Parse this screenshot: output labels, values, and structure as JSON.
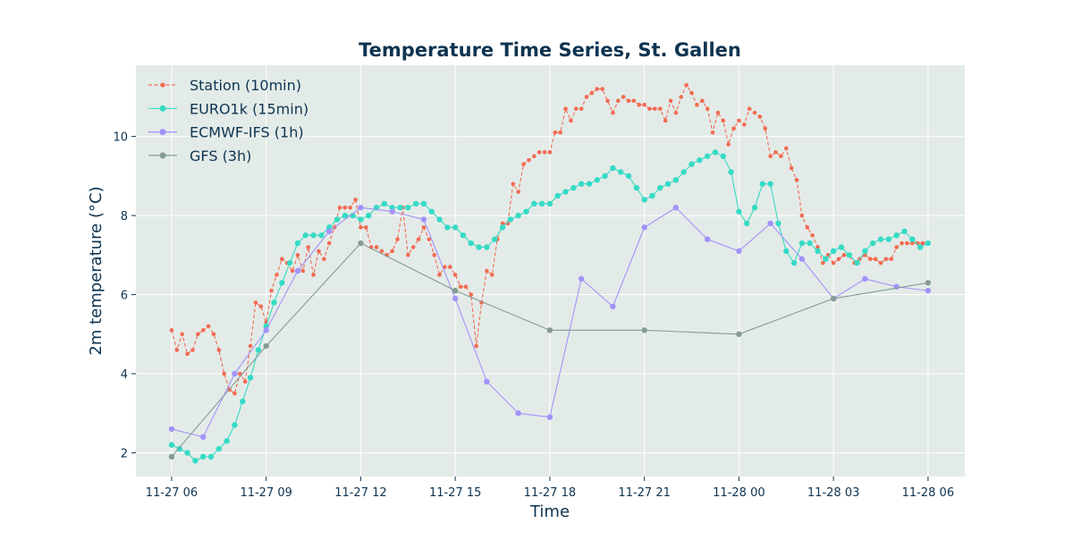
{
  "chart_data": {
    "type": "line",
    "title": "Temperature Time Series, St. Gallen",
    "xlabel": "Time",
    "ylabel": "2m temperature (°C)",
    "x_ticks": [
      "11-27 06",
      "11-27 09",
      "11-27 12",
      "11-27 15",
      "11-27 18",
      "11-27 21",
      "11-28 00",
      "11-28 03",
      "11-28 06"
    ],
    "y_ticks": [
      2,
      4,
      6,
      8,
      10
    ],
    "xlim": [
      "2024-11-27T04:52",
      "2024-11-28T07:10"
    ],
    "ylim": [
      1.4,
      11.8
    ],
    "grid": true,
    "legend_position": "top-left",
    "colors": {
      "background": "#e3ebe8",
      "text": "#0d3451",
      "grid": "#ffffff"
    },
    "series": [
      {
        "name": "Station (10min)",
        "color": "#f26b52",
        "style": "dashed",
        "marker_size": 2.3,
        "x": [
          "2024-11-27T06:00",
          "2024-11-27T06:10",
          "2024-11-27T06:20",
          "2024-11-27T06:30",
          "2024-11-27T06:40",
          "2024-11-27T06:50",
          "2024-11-27T07:00",
          "2024-11-27T07:10",
          "2024-11-27T07:20",
          "2024-11-27T07:30",
          "2024-11-27T07:40",
          "2024-11-27T07:50",
          "2024-11-27T08:00",
          "2024-11-27T08:10",
          "2024-11-27T08:20",
          "2024-11-27T08:30",
          "2024-11-27T08:40",
          "2024-11-27T08:50",
          "2024-11-27T09:00",
          "2024-11-27T09:10",
          "2024-11-27T09:20",
          "2024-11-27T09:30",
          "2024-11-27T09:40",
          "2024-11-27T09:50",
          "2024-11-27T10:00",
          "2024-11-27T10:10",
          "2024-11-27T10:20",
          "2024-11-27T10:30",
          "2024-11-27T10:40",
          "2024-11-27T10:50",
          "2024-11-27T11:00",
          "2024-11-27T11:10",
          "2024-11-27T11:20",
          "2024-11-27T11:30",
          "2024-11-27T11:40",
          "2024-11-27T11:50",
          "2024-11-27T12:00",
          "2024-11-27T12:10",
          "2024-11-27T12:20",
          "2024-11-27T12:30",
          "2024-11-27T12:40",
          "2024-11-27T12:50",
          "2024-11-27T13:00",
          "2024-11-27T13:10",
          "2024-11-27T13:20",
          "2024-11-27T13:30",
          "2024-11-27T13:40",
          "2024-11-27T13:50",
          "2024-11-27T14:00",
          "2024-11-27T14:10",
          "2024-11-27T14:20",
          "2024-11-27T14:30",
          "2024-11-27T14:40",
          "2024-11-27T14:50",
          "2024-11-27T15:00",
          "2024-11-27T15:10",
          "2024-11-27T15:20",
          "2024-11-27T15:30",
          "2024-11-27T15:40",
          "2024-11-27T15:50",
          "2024-11-27T16:00",
          "2024-11-27T16:10",
          "2024-11-27T16:20",
          "2024-11-27T16:30",
          "2024-11-27T16:40",
          "2024-11-27T16:50",
          "2024-11-27T17:00",
          "2024-11-27T17:10",
          "2024-11-27T17:20",
          "2024-11-27T17:30",
          "2024-11-27T17:40",
          "2024-11-27T17:50",
          "2024-11-27T18:00",
          "2024-11-27T18:10",
          "2024-11-27T18:20",
          "2024-11-27T18:30",
          "2024-11-27T18:40",
          "2024-11-27T18:50",
          "2024-11-27T19:00",
          "2024-11-27T19:10",
          "2024-11-27T19:20",
          "2024-11-27T19:30",
          "2024-11-27T19:40",
          "2024-11-27T19:50",
          "2024-11-27T20:00",
          "2024-11-27T20:10",
          "2024-11-27T20:20",
          "2024-11-27T20:30",
          "2024-11-27T20:40",
          "2024-11-27T20:50",
          "2024-11-27T21:00",
          "2024-11-27T21:10",
          "2024-11-27T21:20",
          "2024-11-27T21:30",
          "2024-11-27T21:40",
          "2024-11-27T21:50",
          "2024-11-27T22:00",
          "2024-11-27T22:10",
          "2024-11-27T22:20",
          "2024-11-27T22:30",
          "2024-11-27T22:40",
          "2024-11-27T22:50",
          "2024-11-27T23:00",
          "2024-11-27T23:10",
          "2024-11-27T23:20",
          "2024-11-27T23:30",
          "2024-11-27T23:40",
          "2024-11-27T23:50",
          "2024-11-28T00:00",
          "2024-11-28T00:10",
          "2024-11-28T00:20",
          "2024-11-28T00:30",
          "2024-11-28T00:40",
          "2024-11-28T00:50",
          "2024-11-28T01:00",
          "2024-11-28T01:10",
          "2024-11-28T01:20",
          "2024-11-28T01:30",
          "2024-11-28T01:40",
          "2024-11-28T01:50",
          "2024-11-28T02:00",
          "2024-11-28T02:10",
          "2024-11-28T02:20",
          "2024-11-28T02:30",
          "2024-11-28T02:40",
          "2024-11-28T02:50",
          "2024-11-28T03:00",
          "2024-11-28T03:10",
          "2024-11-28T03:20",
          "2024-11-28T03:30",
          "2024-11-28T03:40",
          "2024-11-28T03:50",
          "2024-11-28T04:00",
          "2024-11-28T04:10",
          "2024-11-28T04:20",
          "2024-11-28T04:30",
          "2024-11-28T04:40",
          "2024-11-28T04:50",
          "2024-11-28T05:00",
          "2024-11-28T05:10",
          "2024-11-28T05:20",
          "2024-11-28T05:30",
          "2024-11-28T05:40",
          "2024-11-28T05:50",
          "2024-11-28T06:00"
        ],
        "y": [
          5.1,
          4.6,
          5.0,
          4.5,
          4.6,
          5.0,
          5.1,
          5.2,
          5.0,
          4.6,
          4.0,
          3.6,
          3.5,
          4.0,
          3.8,
          4.7,
          5.8,
          5.7,
          5.3,
          6.1,
          6.5,
          6.9,
          6.8,
          6.6,
          7.0,
          6.6,
          7.2,
          6.5,
          7.1,
          6.9,
          7.3,
          7.7,
          8.2,
          8.2,
          8.2,
          8.4,
          7.7,
          7.7,
          7.2,
          7.2,
          7.1,
          7.0,
          7.1,
          7.4,
          8.2,
          7.0,
          7.2,
          7.4,
          7.7,
          7.4,
          7.0,
          6.5,
          6.7,
          6.7,
          6.5,
          6.2,
          6.2,
          6.0,
          4.7,
          5.8,
          6.6,
          6.5,
          7.4,
          7.8,
          7.8,
          8.8,
          8.6,
          9.3,
          9.4,
          9.5,
          9.6,
          9.6,
          9.6,
          10.1,
          10.1,
          10.7,
          10.4,
          10.7,
          10.7,
          11.0,
          11.1,
          11.2,
          11.2,
          10.9,
          10.6,
          10.9,
          11.0,
          10.9,
          10.9,
          10.8,
          10.8,
          10.7,
          10.7,
          10.7,
          10.4,
          10.9,
          10.6,
          11.0,
          11.3,
          11.1,
          10.8,
          10.9,
          10.7,
          10.1,
          10.6,
          10.4,
          9.8,
          10.2,
          10.4,
          10.3,
          10.7,
          10.6,
          10.5,
          10.2,
          9.5,
          9.6,
          9.5,
          9.7,
          9.2,
          8.9,
          8.0,
          7.7,
          7.5,
          7.2,
          6.8,
          7.0,
          6.8,
          6.9,
          7.0,
          7.0,
          6.8,
          6.9,
          7.0,
          6.9,
          6.9,
          6.8,
          6.9,
          6.9,
          7.2,
          7.3,
          7.3,
          7.3,
          7.3,
          7.3,
          7.3
        ]
      },
      {
        "name": "EURO1k (15min)",
        "color": "#35dbc5",
        "style": "solid",
        "marker_size": 3.2,
        "x": [
          "2024-11-27T06:00",
          "2024-11-27T06:15",
          "2024-11-27T06:30",
          "2024-11-27T06:45",
          "2024-11-27T07:00",
          "2024-11-27T07:15",
          "2024-11-27T07:30",
          "2024-11-27T07:45",
          "2024-11-27T08:00",
          "2024-11-27T08:15",
          "2024-11-27T08:30",
          "2024-11-27T08:45",
          "2024-11-27T09:00",
          "2024-11-27T09:15",
          "2024-11-27T09:30",
          "2024-11-27T09:45",
          "2024-11-27T10:00",
          "2024-11-27T10:15",
          "2024-11-27T10:30",
          "2024-11-27T10:45",
          "2024-11-27T11:00",
          "2024-11-27T11:15",
          "2024-11-27T11:30",
          "2024-11-27T11:45",
          "2024-11-27T12:00",
          "2024-11-27T12:15",
          "2024-11-27T12:30",
          "2024-11-27T12:45",
          "2024-11-27T13:00",
          "2024-11-27T13:15",
          "2024-11-27T13:30",
          "2024-11-27T13:45",
          "2024-11-27T14:00",
          "2024-11-27T14:15",
          "2024-11-27T14:30",
          "2024-11-27T14:45",
          "2024-11-27T15:00",
          "2024-11-27T15:15",
          "2024-11-27T15:30",
          "2024-11-27T15:45",
          "2024-11-27T16:00",
          "2024-11-27T16:15",
          "2024-11-27T16:30",
          "2024-11-27T16:45",
          "2024-11-27T17:00",
          "2024-11-27T17:15",
          "2024-11-27T17:30",
          "2024-11-27T17:45",
          "2024-11-27T18:00",
          "2024-11-27T18:15",
          "2024-11-27T18:30",
          "2024-11-27T18:45",
          "2024-11-27T19:00",
          "2024-11-27T19:15",
          "2024-11-27T19:30",
          "2024-11-27T19:45",
          "2024-11-27T20:00",
          "2024-11-27T20:15",
          "2024-11-27T20:30",
          "2024-11-27T20:45",
          "2024-11-27T21:00",
          "2024-11-27T21:15",
          "2024-11-27T21:30",
          "2024-11-27T21:45",
          "2024-11-27T22:00",
          "2024-11-27T22:15",
          "2024-11-27T22:30",
          "2024-11-27T22:45",
          "2024-11-27T23:00",
          "2024-11-27T23:15",
          "2024-11-27T23:30",
          "2024-11-27T23:45",
          "2024-11-28T00:00",
          "2024-11-28T00:15",
          "2024-11-28T00:30",
          "2024-11-28T00:45",
          "2024-11-28T01:00",
          "2024-11-28T01:15",
          "2024-11-28T01:30",
          "2024-11-28T01:45",
          "2024-11-28T02:00",
          "2024-11-28T02:15",
          "2024-11-28T02:30",
          "2024-11-28T02:45",
          "2024-11-28T03:00",
          "2024-11-28T03:15",
          "2024-11-28T03:30",
          "2024-11-28T03:45",
          "2024-11-28T04:00",
          "2024-11-28T04:15",
          "2024-11-28T04:30",
          "2024-11-28T04:45",
          "2024-11-28T05:00",
          "2024-11-28T05:15",
          "2024-11-28T05:30",
          "2024-11-28T05:45",
          "2024-11-28T06:00"
        ],
        "y": [
          2.2,
          2.1,
          2.0,
          1.8,
          1.9,
          1.9,
          2.1,
          2.3,
          2.7,
          3.3,
          3.9,
          4.6,
          5.2,
          5.8,
          6.3,
          6.8,
          7.3,
          7.5,
          7.5,
          7.5,
          7.7,
          7.9,
          8.0,
          8.0,
          7.9,
          8.0,
          8.2,
          8.3,
          8.2,
          8.2,
          8.2,
          8.3,
          8.3,
          8.1,
          7.9,
          7.7,
          7.7,
          7.5,
          7.3,
          7.2,
          7.2,
          7.4,
          7.7,
          7.9,
          8.0,
          8.1,
          8.3,
          8.3,
          8.3,
          8.5,
          8.6,
          8.7,
          8.8,
          8.8,
          8.9,
          9.0,
          9.2,
          9.1,
          9.0,
          8.7,
          8.4,
          8.5,
          8.7,
          8.8,
          8.9,
          9.1,
          9.3,
          9.4,
          9.5,
          9.6,
          9.5,
          9.1,
          8.1,
          7.8,
          8.2,
          8.8,
          8.8,
          7.8,
          7.1,
          6.8,
          7.3,
          7.3,
          7.1,
          6.9,
          7.1,
          7.2,
          7.0,
          6.8,
          7.1,
          7.3,
          7.4,
          7.4,
          7.5,
          7.6,
          7.4,
          7.2,
          7.3
        ]
      },
      {
        "name": "ECMWF-IFS (1h)",
        "color": "#a292f9",
        "style": "solid",
        "marker_size": 3.2,
        "x": [
          "2024-11-27T06:00",
          "2024-11-27T07:00",
          "2024-11-27T08:00",
          "2024-11-27T09:00",
          "2024-11-27T10:00",
          "2024-11-27T11:00",
          "2024-11-27T12:00",
          "2024-11-27T13:00",
          "2024-11-27T14:00",
          "2024-11-27T15:00",
          "2024-11-27T16:00",
          "2024-11-27T17:00",
          "2024-11-27T18:00",
          "2024-11-27T19:00",
          "2024-11-27T20:00",
          "2024-11-27T21:00",
          "2024-11-27T22:00",
          "2024-11-27T23:00",
          "2024-11-28T00:00",
          "2024-11-28T01:00",
          "2024-11-28T02:00",
          "2024-11-28T03:00",
          "2024-11-28T04:00",
          "2024-11-28T05:00",
          "2024-11-28T06:00"
        ],
        "y": [
          2.6,
          2.4,
          4.0,
          5.1,
          6.6,
          7.6,
          8.2,
          8.1,
          7.9,
          5.9,
          3.8,
          3.0,
          2.9,
          6.4,
          5.7,
          7.7,
          8.2,
          7.4,
          7.1,
          7.8,
          6.9,
          5.9,
          6.4,
          6.2,
          6.1
        ]
      },
      {
        "name": "GFS (3h)",
        "color": "#859b91",
        "style": "solid",
        "marker_size": 3.2,
        "x": [
          "2024-11-27T06:00",
          "2024-11-27T09:00",
          "2024-11-27T12:00",
          "2024-11-27T15:00",
          "2024-11-27T18:00",
          "2024-11-27T21:00",
          "2024-11-28T00:00",
          "2024-11-28T03:00",
          "2024-11-28T06:00"
        ],
        "y": [
          1.9,
          4.7,
          7.3,
          6.1,
          5.1,
          5.1,
          5.0,
          5.9,
          6.3
        ]
      }
    ]
  }
}
